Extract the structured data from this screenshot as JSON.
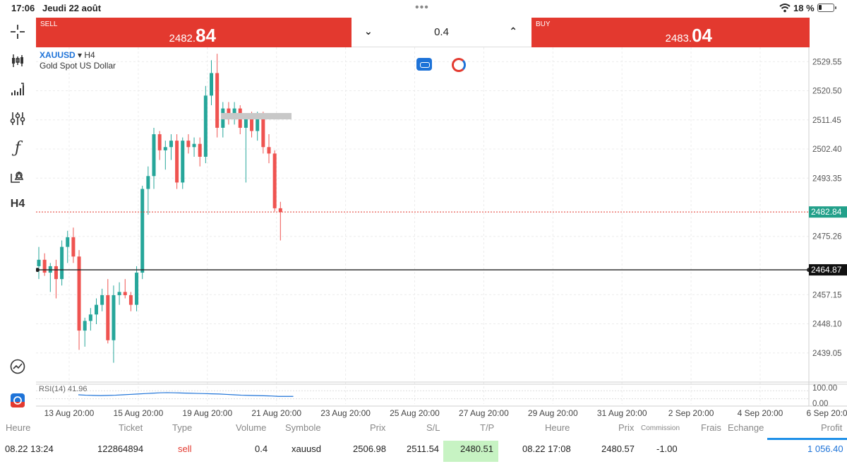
{
  "status": {
    "time": "17:06",
    "date": "Jeudi 22 août",
    "battery": "18 %"
  },
  "toolbar": {
    "timeframe": "H4"
  },
  "trade": {
    "sell": {
      "label": "SELL",
      "price_main": "2482.",
      "price_big": "84"
    },
    "buy": {
      "label": "BUY",
      "price_main": "2483.",
      "price_big": "04"
    },
    "volume": "0.4"
  },
  "chart": {
    "symbol": "XAUUSD",
    "timeframe": "H4",
    "description": "Gold Spot US Dollar",
    "rsi_label": "RSI(14)  41.96"
  },
  "chart_data": {
    "type": "candlestick",
    "y_ticks": [
      "2529.55",
      "2520.50",
      "2511.45",
      "2502.40",
      "2493.35",
      "2475.26",
      "2457.15",
      "2448.10",
      "2439.05"
    ],
    "ylim": [
      2430.0,
      2534.0
    ],
    "x_ticks": [
      "13 Aug 20:00",
      "15 Aug 20:00",
      "19 Aug 20:00",
      "21 Aug 20:00",
      "23 Aug 20:00",
      "25 Aug 20:00",
      "27 Aug 20:00",
      "29 Aug 20:00",
      "31 Aug 20:00",
      "2 Sep 20:00",
      "4 Sep 20:00",
      "6 Sep 20:00"
    ],
    "bid_line": {
      "value": "2482.84",
      "color": "#e3392f"
    },
    "order_line": {
      "value": "2464.87"
    },
    "rsi_ticks": [
      "100.00",
      "0.00"
    ],
    "candles": [
      {
        "o": 2466.0,
        "h": 2472.0,
        "l": 2462.0,
        "c": 2468.0
      },
      {
        "o": 2468.0,
        "h": 2470.0,
        "l": 2463.0,
        "c": 2464.0
      },
      {
        "o": 2464.0,
        "h": 2467.0,
        "l": 2458.0,
        "c": 2466.0
      },
      {
        "o": 2466.0,
        "h": 2468.0,
        "l": 2456.0,
        "c": 2462.0
      },
      {
        "o": 2462.0,
        "h": 2474.0,
        "l": 2460.0,
        "c": 2472.0
      },
      {
        "o": 2472.0,
        "h": 2477.0,
        "l": 2467.0,
        "c": 2475.0
      },
      {
        "o": 2475.0,
        "h": 2478.0,
        "l": 2467.0,
        "c": 2469.0
      },
      {
        "o": 2469.0,
        "h": 2471.0,
        "l": 2440.0,
        "c": 2446.0
      },
      {
        "o": 2446.0,
        "h": 2450.0,
        "l": 2441.0,
        "c": 2449.0
      },
      {
        "o": 2449.0,
        "h": 2453.0,
        "l": 2446.0,
        "c": 2451.0
      },
      {
        "o": 2451.0,
        "h": 2456.0,
        "l": 2448.0,
        "c": 2454.0
      },
      {
        "o": 2454.0,
        "h": 2459.0,
        "l": 2452.0,
        "c": 2457.0
      },
      {
        "o": 2457.0,
        "h": 2462.0,
        "l": 2442.0,
        "c": 2443.0
      },
      {
        "o": 2443.0,
        "h": 2460.0,
        "l": 2436.0,
        "c": 2457.0
      },
      {
        "o": 2457.0,
        "h": 2461.0,
        "l": 2454.0,
        "c": 2458.0
      },
      {
        "o": 2458.0,
        "h": 2462.0,
        "l": 2456.0,
        "c": 2457.0
      },
      {
        "o": 2457.0,
        "h": 2458.0,
        "l": 2452.0,
        "c": 2454.0
      },
      {
        "o": 2454.0,
        "h": 2466.0,
        "l": 2452.0,
        "c": 2464.0
      },
      {
        "o": 2464.0,
        "h": 2491.0,
        "l": 2462.0,
        "c": 2490.0
      },
      {
        "o": 2490.0,
        "h": 2497.0,
        "l": 2482.0,
        "c": 2494.0
      },
      {
        "o": 2494.0,
        "h": 2509.0,
        "l": 2490.0,
        "c": 2507.0
      },
      {
        "o": 2507.0,
        "h": 2508.0,
        "l": 2499.0,
        "c": 2502.0
      },
      {
        "o": 2502.0,
        "h": 2505.0,
        "l": 2496.0,
        "c": 2503.0
      },
      {
        "o": 2503.0,
        "h": 2507.0,
        "l": 2499.0,
        "c": 2505.0
      },
      {
        "o": 2505.0,
        "h": 2507.0,
        "l": 2490.0,
        "c": 2492.0
      },
      {
        "o": 2492.0,
        "h": 2506.0,
        "l": 2490.0,
        "c": 2505.0
      },
      {
        "o": 2505.0,
        "h": 2507.0,
        "l": 2501.0,
        "c": 2503.0
      },
      {
        "o": 2503.0,
        "h": 2506.0,
        "l": 2500.0,
        "c": 2504.0
      },
      {
        "o": 2504.0,
        "h": 2506.0,
        "l": 2497.0,
        "c": 2500.0
      },
      {
        "o": 2500.0,
        "h": 2522.0,
        "l": 2498.0,
        "c": 2519.0
      },
      {
        "o": 2519.0,
        "h": 2530.0,
        "l": 2516.0,
        "c": 2526.0
      },
      {
        "o": 2526.0,
        "h": 2532.0,
        "l": 2506.0,
        "c": 2509.0
      },
      {
        "o": 2509.0,
        "h": 2517.0,
        "l": 2506.0,
        "c": 2515.0
      },
      {
        "o": 2515.0,
        "h": 2517.0,
        "l": 2510.0,
        "c": 2513.0
      },
      {
        "o": 2513.0,
        "h": 2517.0,
        "l": 2510.0,
        "c": 2515.0
      },
      {
        "o": 2515.0,
        "h": 2516.0,
        "l": 2507.0,
        "c": 2509.0
      },
      {
        "o": 2509.0,
        "h": 2513.0,
        "l": 2492.0,
        "c": 2512.0
      },
      {
        "o": 2512.0,
        "h": 2514.0,
        "l": 2506.0,
        "c": 2508.0
      },
      {
        "o": 2508.0,
        "h": 2514.0,
        "l": 2505.0,
        "c": 2513.0
      },
      {
        "o": 2513.0,
        "h": 2514.0,
        "l": 2501.0,
        "c": 2503.0
      },
      {
        "o": 2503.0,
        "h": 2507.0,
        "l": 2498.0,
        "c": 2501.0
      },
      {
        "o": 2501.0,
        "h": 2502.0,
        "l": 2483.0,
        "c": 2484.0
      },
      {
        "o": 2484.0,
        "h": 2486.0,
        "l": 2474.0,
        "c": 2482.8
      }
    ]
  },
  "table": {
    "headers": {
      "heure": "Heure",
      "ticket": "Ticket",
      "type": "Type",
      "volume": "Volume",
      "symbole": "Symbole",
      "prix": "Prix",
      "sl": "S/L",
      "tp": "T/P",
      "heure2": "Heure",
      "prix2": "Prix",
      "commission": "Commission",
      "frais": "Frais",
      "echange": "Echange",
      "profit": "Profit"
    },
    "row": {
      "heure": "08.22 13:24",
      "ticket": "122864894",
      "type": "sell",
      "volume": "0.4",
      "symbole": "xauusd",
      "prix": "2506.98",
      "sl": "2511.54",
      "tp": "2480.51",
      "heure2": "08.22 17:08",
      "prix2": "2480.57",
      "commission": "-1.00",
      "profit": "1 056.40"
    }
  }
}
